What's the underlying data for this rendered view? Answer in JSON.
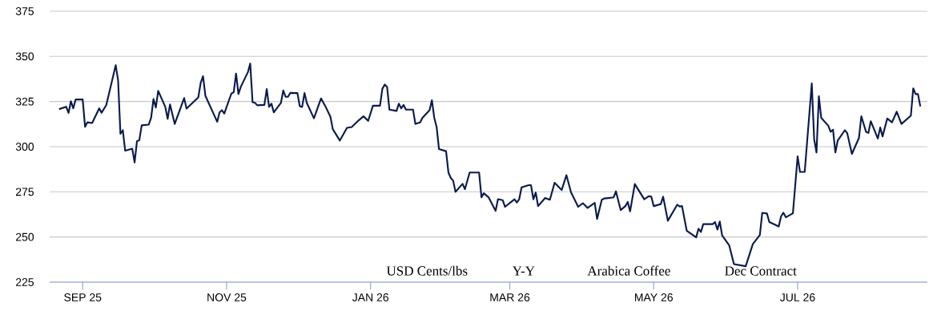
{
  "chart_data": {
    "type": "line",
    "annotations": [
      "USD Cents/lbs",
      "Y-Y",
      "Arabica Coffee",
      "Dec Contract"
    ],
    "xlim": [
      "2025-08-18",
      "2026-08-25"
    ],
    "xticks": [
      {
        "value": "2025-09-01",
        "label": "SEP 25"
      },
      {
        "value": "2025-11-01",
        "label": "NOV 25"
      },
      {
        "value": "2026-01-01",
        "label": "JAN 26"
      },
      {
        "value": "2026-03-01",
        "label": "MAR 26"
      },
      {
        "value": "2026-05-01",
        "label": "MAY 26"
      },
      {
        "value": "2026-07-01",
        "label": "JUL 26"
      }
    ],
    "ylim": [
      225,
      375
    ],
    "yticks": [
      225,
      250,
      275,
      300,
      325,
      350,
      375
    ],
    "grid": "y",
    "series": [
      {
        "color": "#0a1a4e",
        "x": [
          "2025-08-22",
          "2025-08-25",
          "2025-08-26",
          "2025-08-27",
          "2025-08-28",
          "2025-08-29",
          "2025-09-01",
          "2025-09-02",
          "2025-09-03",
          "2025-09-05",
          "2025-09-08",
          "2025-09-09",
          "2025-09-11",
          "2025-09-15",
          "2025-09-16",
          "2025-09-17",
          "2025-09-18",
          "2025-09-19",
          "2025-09-22",
          "2025-09-23",
          "2025-09-24",
          "2025-09-25",
          "2025-09-26",
          "2025-09-29",
          "2025-09-30",
          "2025-10-01",
          "2025-10-02",
          "2025-10-03",
          "2025-10-06",
          "2025-10-07",
          "2025-10-08",
          "2025-10-10",
          "2025-10-14",
          "2025-10-15",
          "2025-10-20",
          "2025-10-21",
          "2025-10-22",
          "2025-10-23",
          "2025-10-28",
          "2025-10-29",
          "2025-10-30",
          "2025-10-31",
          "2025-11-03",
          "2025-11-04",
          "2025-11-05",
          "2025-11-06",
          "2025-11-07",
          "2025-11-10",
          "2025-11-11",
          "2025-11-12",
          "2025-11-13",
          "2025-11-14",
          "2025-11-17",
          "2025-11-18",
          "2025-11-19",
          "2025-11-20",
          "2025-11-21",
          "2025-11-24",
          "2025-11-25",
          "2025-11-26",
          "2025-11-27",
          "2025-11-28",
          "2025-12-01",
          "2025-12-02",
          "2025-12-03",
          "2025-12-04",
          "2025-12-05",
          "2025-12-08",
          "2025-12-11",
          "2025-12-13",
          "2025-12-15",
          "2025-12-16",
          "2025-12-19",
          "2025-12-22",
          "2025-12-24",
          "2025-12-27",
          "2025-12-29",
          "2025-12-31",
          "2026-01-02",
          "2026-01-05",
          "2026-01-06",
          "2026-01-07",
          "2026-01-08",
          "2026-01-09",
          "2026-01-12",
          "2026-01-13",
          "2026-01-14",
          "2026-01-15",
          "2026-01-16",
          "2026-01-19",
          "2026-01-20",
          "2026-01-22",
          "2026-01-23",
          "2026-01-26",
          "2026-01-27",
          "2026-01-28",
          "2026-01-29",
          "2026-01-30",
          "2026-02-02",
          "2026-02-03",
          "2026-02-04",
          "2026-02-05",
          "2026-02-06",
          "2026-02-09",
          "2026-02-10",
          "2026-02-12",
          "2026-02-16",
          "2026-02-17",
          "2026-02-18",
          "2026-02-20",
          "2026-02-23",
          "2026-02-24",
          "2026-02-26",
          "2026-02-27",
          "2026-03-03",
          "2026-03-04",
          "2026-03-05",
          "2026-03-06",
          "2026-03-09",
          "2026-03-10",
          "2026-03-11",
          "2026-03-12",
          "2026-03-13",
          "2026-03-16",
          "2026-03-18",
          "2026-03-20",
          "2026-03-23",
          "2026-03-25",
          "2026-03-27",
          "2026-03-30",
          "2026-04-01",
          "2026-04-03",
          "2026-04-06",
          "2026-04-07",
          "2026-04-09",
          "2026-04-10",
          "2026-04-14",
          "2026-04-15",
          "2026-04-17",
          "2026-04-19",
          "2026-04-20",
          "2026-04-21",
          "2026-04-23",
          "2026-04-27",
          "2026-04-29",
          "2026-04-30",
          "2026-05-01",
          "2026-05-04",
          "2026-05-05",
          "2026-05-07",
          "2026-05-11",
          "2026-05-12",
          "2026-05-13",
          "2026-05-15",
          "2026-05-19",
          "2026-05-20",
          "2026-05-21",
          "2026-05-22",
          "2026-05-26",
          "2026-05-27",
          "2026-05-28",
          "2026-05-29",
          "2026-05-30",
          "2026-06-02",
          "2026-06-04",
          "2026-06-09",
          "2026-06-12",
          "2026-06-15",
          "2026-06-16",
          "2026-06-18",
          "2026-06-19",
          "2026-06-23",
          "2026-06-24",
          "2026-06-25",
          "2026-06-26",
          "2026-06-29",
          "2026-07-01",
          "2026-07-02",
          "2026-07-04",
          "2026-07-07",
          "2026-07-08",
          "2026-07-09",
          "2026-07-10",
          "2026-07-11",
          "2026-07-14",
          "2026-07-15",
          "2026-07-16",
          "2026-07-17",
          "2026-07-18",
          "2026-07-21",
          "2026-07-22",
          "2026-07-24",
          "2026-07-27",
          "2026-07-28",
          "2026-07-30",
          "2026-07-31",
          "2026-08-01",
          "2026-08-04",
          "2026-08-05",
          "2026-08-06",
          "2026-08-08",
          "2026-08-10",
          "2026-08-12",
          "2026-08-14",
          "2026-08-18",
          "2026-08-19",
          "2026-08-20",
          "2026-08-21",
          "2026-08-22"
        ],
        "values": [
          320.8,
          322.1,
          318.7,
          325.2,
          321.2,
          326.1,
          326.1,
          311,
          313.5,
          313.1,
          321.2,
          318.8,
          323.1,
          345.1,
          336.8,
          307.1,
          309.1,
          297.8,
          298.9,
          291.3,
          303,
          303.6,
          311.8,
          312.2,
          316,
          326.4,
          321.7,
          330.9,
          322,
          315.4,
          323.4,
          312.6,
          326.9,
          321.1,
          327.3,
          335.3,
          339,
          328.2,
          313.8,
          319,
          320.2,
          318.4,
          329.4,
          330.1,
          340.5,
          329.1,
          333.1,
          341.2,
          346,
          324.6,
          324.3,
          322.9,
          323.1,
          331.9,
          322,
          323.8,
          319,
          324.2,
          331.1,
          327.6,
          327.6,
          329.8,
          329.7,
          322.4,
          322,
          329.7,
          324.2,
          315.7,
          326.7,
          322,
          316.5,
          309.7,
          303.4,
          310.4,
          310.9,
          314.6,
          316.8,
          314.3,
          322.7,
          322.7,
          332,
          334.4,
          333.1,
          320.5,
          319.8,
          323.8,
          321.2,
          323.1,
          320.5,
          320.5,
          312.6,
          313.4,
          316,
          320.2,
          325.7,
          316,
          310.9,
          298.7,
          297.5,
          285.7,
          282.7,
          281.2,
          275,
          279.4,
          276.5,
          285.7,
          285.7,
          272,
          274.2,
          272,
          264.5,
          270.9,
          270.4,
          266.7,
          270.9,
          269.1,
          270.9,
          277.5,
          278.7,
          278.7,
          270.9,
          274.6,
          267.1,
          271.6,
          270.6,
          280,
          276,
          284.2,
          274.6,
          266.7,
          268.7,
          266.1,
          268.9,
          260,
          270.6,
          271.3,
          271.9,
          275.3,
          264.9,
          267.1,
          269.4,
          264.2,
          279.3,
          270.9,
          272.6,
          272.3,
          267.1,
          268.2,
          272.3,
          259,
          267.9,
          266.9,
          267.1,
          253.5,
          249.8,
          254.6,
          252.8,
          257.1,
          257.1,
          258.3,
          254.1,
          258.6,
          250.9,
          245.4,
          235,
          233.8,
          246,
          251.1,
          263.4,
          263,
          258.3,
          255.8,
          261.5,
          263.4,
          260.9,
          263.1,
          294.6,
          286,
          286,
          335,
          304.2,
          296.8,
          327.9,
          316,
          311.6,
          308.2,
          309.4,
          296.8,
          303.4,
          309.1,
          307.6,
          296,
          304.9,
          316.8,
          308.2,
          307.6,
          314.1,
          304.5,
          310.6,
          305.7,
          315.6,
          313.5,
          319.4,
          312.6,
          317.2,
          332.3,
          329.1,
          329.1,
          322.3
        ]
      }
    ]
  }
}
